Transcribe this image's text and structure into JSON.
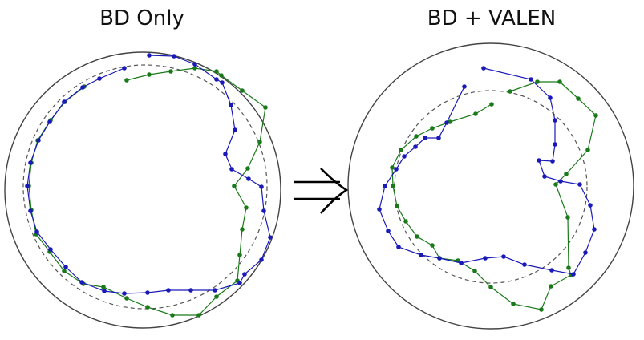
{
  "panels": [
    {
      "title": "BD Only",
      "blue_series": [
        [
          186,
          69
        ],
        [
          217,
          70
        ],
        [
          243,
          80
        ],
        [
          270,
          99
        ],
        [
          277,
          103
        ],
        [
          288,
          131
        ],
        [
          293,
          162
        ],
        [
          281,
          192
        ],
        [
          289,
          211
        ],
        [
          310,
          223
        ],
        [
          326,
          233
        ],
        [
          329,
          263
        ],
        [
          337,
          296
        ],
        [
          326,
          324
        ],
        [
          305,
          342
        ],
        [
          299,
          353
        ],
        [
          268,
          362
        ],
        [
          238,
          362
        ],
        [
          210,
          362
        ],
        [
          184,
          365
        ],
        [
          155,
          366
        ],
        [
          130,
          363
        ],
        [
          102,
          352
        ],
        [
          82,
          333
        ],
        [
          63,
          311
        ],
        [
          46,
          289
        ],
        [
          38,
          263
        ],
        [
          34,
          232
        ],
        [
          38,
          203
        ],
        [
          48,
          175
        ],
        [
          62,
          152
        ],
        [
          80,
          127
        ],
        [
          103,
          109
        ],
        [
          124,
          98
        ],
        [
          155,
          85
        ]
      ],
      "green_series": [
        [
          158,
          100
        ],
        [
          186,
          93
        ],
        [
          213,
          89
        ],
        [
          243,
          85
        ],
        [
          270,
          89
        ],
        [
          276,
          94
        ],
        [
          302,
          113
        ],
        [
          331,
          134
        ],
        [
          324,
          177
        ],
        [
          309,
          210
        ],
        [
          292,
          232
        ],
        [
          307,
          259
        ],
        [
          302,
          286
        ],
        [
          299,
          318
        ],
        [
          296,
          350
        ],
        [
          270,
          370
        ],
        [
          248,
          393
        ],
        [
          215,
          393
        ],
        [
          184,
          383
        ],
        [
          158,
          372
        ],
        [
          129,
          358
        ],
        [
          104,
          354
        ],
        [
          80,
          338
        ],
        [
          62,
          314
        ],
        [
          45,
          292
        ],
        [
          39,
          262
        ],
        [
          36,
          232
        ],
        [
          39,
          203
        ],
        [
          47,
          175
        ],
        [
          63,
          150
        ],
        [
          81,
          127
        ],
        [
          105,
          108
        ]
      ],
      "colors": {
        "blue": "#1a1ab8",
        "green": "#1a7a1a",
        "circle": "#444444",
        "dashed": "#555555"
      }
    },
    {
      "title": "BD + VALEN",
      "blue_series": [
        [
          603,
          85
        ],
        [
          662,
          99
        ],
        [
          686,
          122
        ],
        [
          692,
          150
        ],
        [
          692,
          180
        ],
        [
          689,
          201
        ],
        [
          672,
          200
        ],
        [
          679,
          220
        ],
        [
          699,
          226
        ],
        [
          723,
          230
        ],
        [
          736,
          256
        ],
        [
          741,
          286
        ],
        [
          730,
          315
        ],
        [
          715,
          342
        ],
        [
          688,
          337
        ],
        [
          654,
          330
        ],
        [
          628,
          320
        ],
        [
          605,
          322
        ],
        [
          575,
          328
        ],
        [
          548,
          322
        ],
        [
          525,
          318
        ],
        [
          497,
          308
        ],
        [
          484,
          288
        ],
        [
          473,
          261
        ],
        [
          480,
          232
        ],
        [
          494,
          211
        ],
        [
          504,
          195
        ],
        [
          518,
          183
        ],
        [
          530,
          172
        ],
        [
          547,
          172
        ],
        [
          557,
          153
        ],
        [
          579,
          108
        ]
      ],
      "green_series": [
        [
          636,
          114
        ],
        [
          670,
          102
        ],
        [
          698,
          102
        ],
        [
          721,
          123
        ],
        [
          743,
          144
        ],
        [
          733,
          187
        ],
        [
          706,
          217
        ],
        [
          693,
          230
        ],
        [
          708,
          271
        ],
        [
          709,
          334
        ],
        [
          712,
          343
        ],
        [
          687,
          357
        ],
        [
          675,
          386
        ],
        [
          640,
          379
        ],
        [
          612,
          358
        ],
        [
          592,
          338
        ],
        [
          571,
          325
        ],
        [
          548,
          322
        ],
        [
          539,
          306
        ],
        [
          520,
          295
        ],
        [
          506,
          276
        ],
        [
          495,
          257
        ],
        [
          490,
          232
        ],
        [
          489,
          209
        ],
        [
          500,
          187
        ],
        [
          519,
          170
        ],
        [
          539,
          160
        ],
        [
          561,
          152
        ],
        [
          593,
          142
        ],
        [
          613,
          130
        ]
      ],
      "colors": {
        "blue": "#1a1ab8",
        "green": "#1a7a1a",
        "circle": "#444444",
        "dashed": "#555555"
      }
    }
  ]
}
